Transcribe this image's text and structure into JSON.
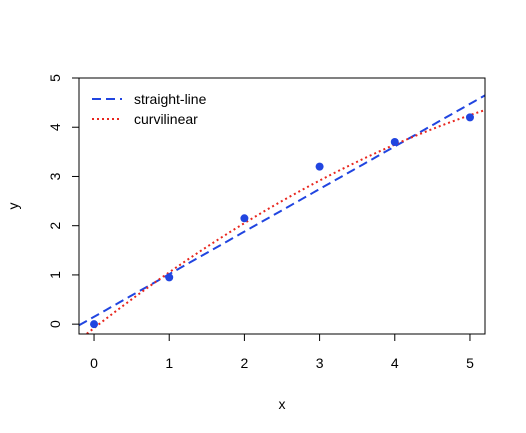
{
  "chart_data": {
    "type": "scatter",
    "xlabel": "x",
    "ylabel": "y",
    "xlim": [
      -0.2,
      5.2
    ],
    "ylim": [
      -0.2,
      5.0
    ],
    "x_ticks": [
      "0",
      "1",
      "2",
      "3",
      "4",
      "5"
    ],
    "y_ticks": [
      "0",
      "1",
      "2",
      "3",
      "4",
      "5"
    ],
    "grid": false,
    "legend_position": "top-left",
    "points": {
      "x": [
        0,
        1,
        2,
        3,
        4,
        5
      ],
      "y": [
        0.0,
        0.95,
        2.15,
        3.2,
        3.7,
        4.2
      ],
      "color": "#2145e0"
    },
    "series": [
      {
        "name": "straight-line",
        "kind": "linear-fit",
        "style": "dashed",
        "color": "#2145e0",
        "intercept": 0.15,
        "slope": 0.865
      },
      {
        "name": "curvilinear",
        "kind": "quadratic-fit",
        "style": "dotted",
        "color": "#e8261e",
        "c0": -0.08,
        "c1": 1.2,
        "c2": -0.067
      }
    ]
  }
}
